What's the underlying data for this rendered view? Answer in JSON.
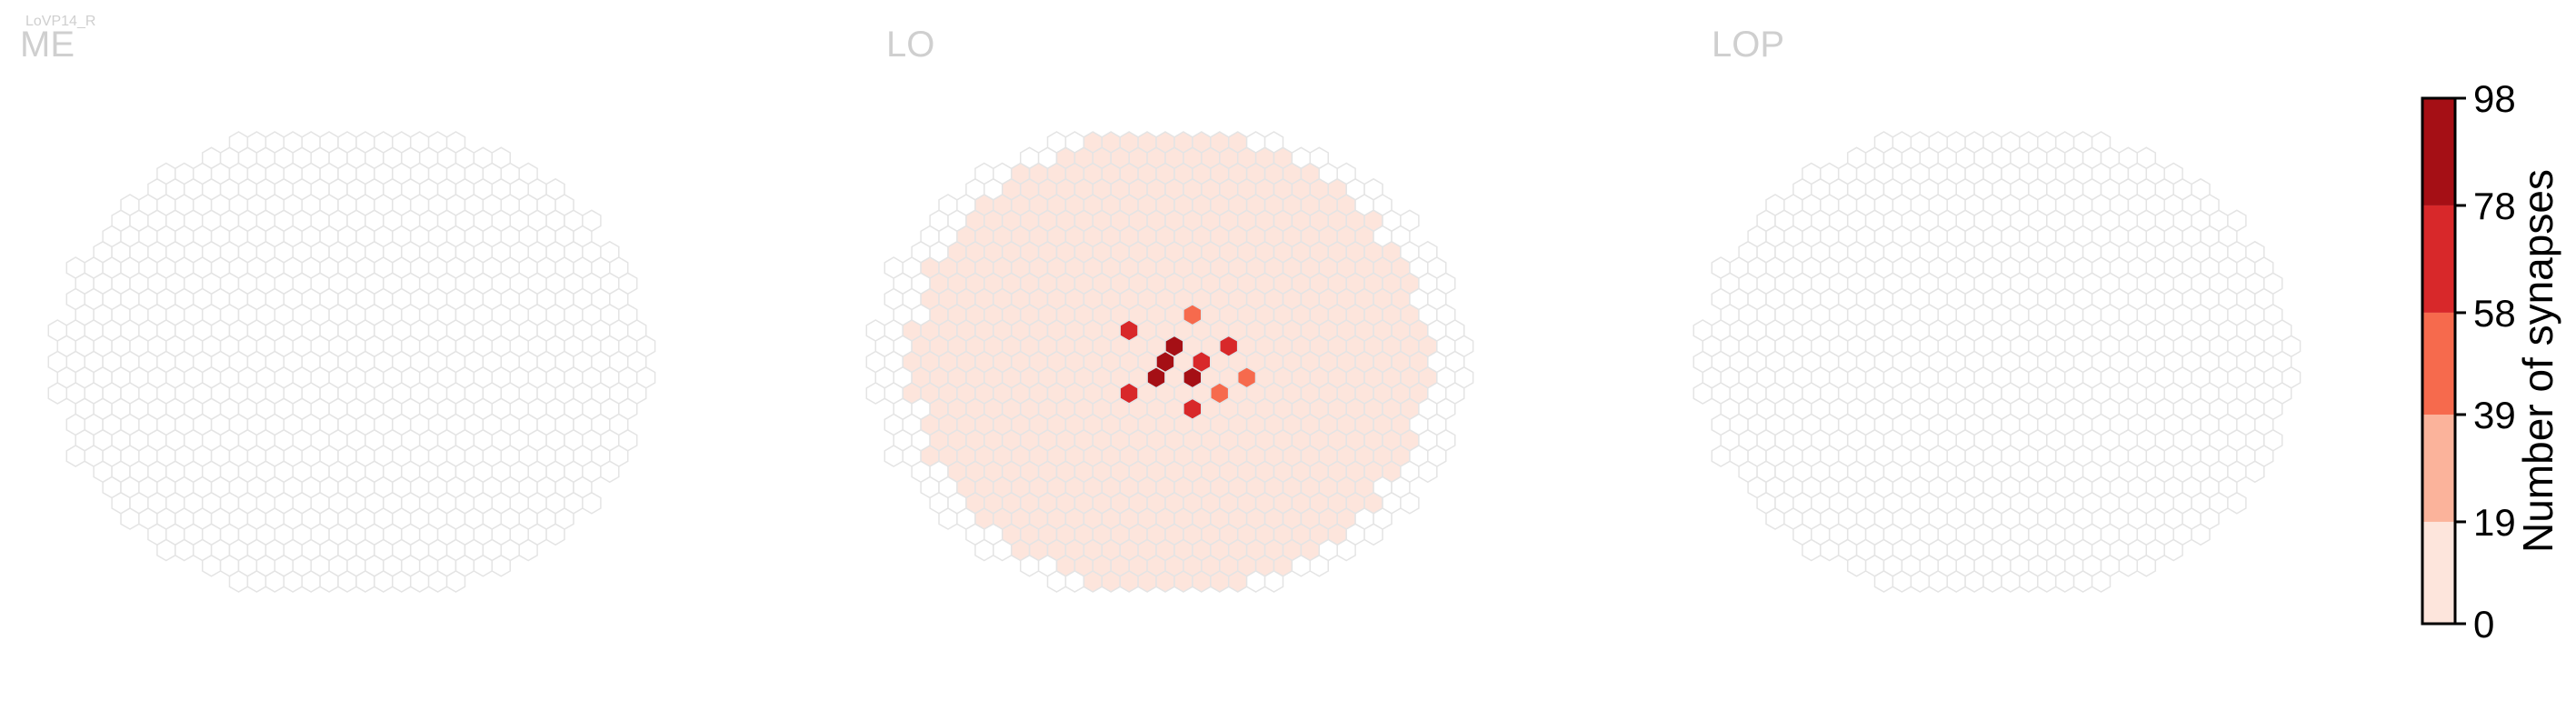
{
  "figure_label": "LoVP14_R",
  "chart_data": {
    "type": "heatmap",
    "layout": "hexagonal eye map",
    "panels": [
      {
        "title": "ME",
        "cells": []
      },
      {
        "title": "LO",
        "cells": [
          {
            "row": 0,
            "col": 0,
            "synapses": 95
          },
          {
            "row": 1,
            "col": 1,
            "synapses": 90
          },
          {
            "row": -1,
            "col": 0,
            "synapses": 82
          },
          {
            "row": 1,
            "col": -1,
            "synapses": 80
          },
          {
            "row": 2,
            "col": -2,
            "synapses": 75
          },
          {
            "row": 0,
            "col": 2,
            "synapses": 70
          },
          {
            "row": -1,
            "col": 3,
            "synapses": 66
          },
          {
            "row": 3,
            "col": 1,
            "synapses": 62
          },
          {
            "row": -2,
            "col": -2,
            "synapses": 60
          },
          {
            "row": 2,
            "col": 3,
            "synapses": 55
          },
          {
            "row": 1,
            "col": 4,
            "synapses": 50
          },
          {
            "row": -3,
            "col": 1,
            "synapses": 45
          }
        ]
      },
      {
        "title": "LOP",
        "cells": []
      }
    ],
    "colorbar": {
      "label": "Number of synapses",
      "ticks": [
        0,
        19,
        39,
        58,
        78,
        98
      ],
      "colors": [
        "#fde5dc",
        "#fbb39b",
        "#f66a4d",
        "#d8282a",
        "#a50f15"
      ]
    },
    "colors": {
      "cell_outline": "#e4e4e4",
      "cell_outside": "#cccccc"
    }
  }
}
